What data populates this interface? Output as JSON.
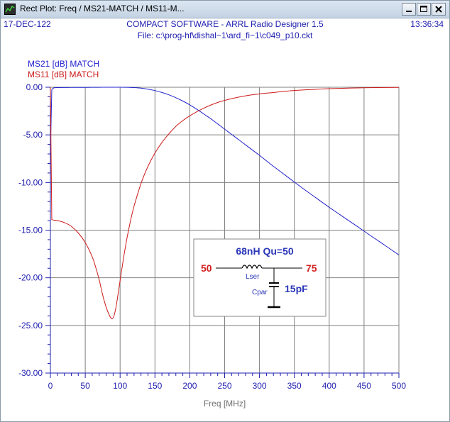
{
  "window": {
    "title": "Rect Plot: Freq / MS21-MATCH / MS11-M...",
    "icon": "plot-app-icon",
    "controls": [
      "minimize-icon",
      "maximize-icon",
      "close-icon"
    ]
  },
  "header": {
    "date": "17-DEC-122",
    "title": "COMPACT SOFTWARE - ARRL Radio Designer 1.5",
    "time": "13:36:34",
    "file": "File: c:\\prog-hf\\dishal~1\\ard_fi~1\\c049_p10.ckt"
  },
  "colors": {
    "ms21": "#2222cc",
    "ms11": "#cc1a1a",
    "grid": "#808080",
    "axis": "#1f1fb0",
    "accent_red": "#d42020",
    "accent_blue": "#2a36b8"
  },
  "chart_data": {
    "type": "line",
    "xlabel": "Freq [MHz]",
    "ylabel": "",
    "xlim": [
      0,
      500
    ],
    "ylim": [
      -30,
      0
    ],
    "x_ticks": [
      "0",
      "50",
      "100",
      "150",
      "200",
      "250",
      "300",
      "350",
      "400",
      "450",
      "500"
    ],
    "y_ticks": [
      "0.00",
      "-5.00",
      "-10.00",
      "-15.00",
      "-20.00",
      "-25.00",
      "-30.00"
    ],
    "grid": true,
    "legend_placement": "top-left",
    "series": [
      {
        "name": "MS21 [dB] MATCH",
        "color": "#2222cc",
        "x": [
          0,
          2,
          5,
          10,
          20,
          30,
          40,
          50,
          60,
          70,
          80,
          90,
          100,
          110,
          120,
          130,
          140,
          150,
          160,
          170,
          180,
          190,
          200,
          210,
          220,
          230,
          240,
          250,
          260,
          270,
          280,
          290,
          300,
          320,
          340,
          360,
          380,
          400,
          420,
          440,
          460,
          480,
          500
        ],
        "y": [
          -7.0,
          -0.25,
          -0.07,
          -0.04,
          -0.03,
          -0.02,
          -0.02,
          -0.02,
          -0.01,
          -0.01,
          0.0,
          0.0,
          0.0,
          -0.01,
          -0.04,
          -0.1,
          -0.2,
          -0.35,
          -0.55,
          -0.8,
          -1.1,
          -1.45,
          -1.85,
          -2.3,
          -2.8,
          -3.3,
          -3.85,
          -4.4,
          -4.95,
          -5.5,
          -6.05,
          -6.6,
          -7.15,
          -8.3,
          -9.4,
          -10.5,
          -11.55,
          -12.6,
          -13.6,
          -14.6,
          -15.6,
          -16.6,
          -17.6
        ]
      },
      {
        "name": "MS11 [dB] MATCH",
        "color": "#cc1a1a",
        "x": [
          0,
          2,
          5,
          10,
          20,
          30,
          40,
          50,
          60,
          65,
          70,
          75,
          80,
          85,
          88,
          90,
          92,
          95,
          100,
          105,
          110,
          115,
          120,
          130,
          140,
          150,
          160,
          170,
          180,
          190,
          200,
          220,
          240,
          260,
          280,
          300,
          320,
          340,
          360,
          380,
          400,
          450,
          500
        ],
        "y": [
          0.0,
          -13.9,
          -13.95,
          -14.0,
          -14.2,
          -14.6,
          -15.3,
          -16.3,
          -17.8,
          -18.9,
          -20.2,
          -21.8,
          -23.1,
          -24.0,
          -24.3,
          -24.2,
          -23.8,
          -22.7,
          -20.3,
          -17.9,
          -15.8,
          -14.0,
          -12.5,
          -10.1,
          -8.3,
          -6.9,
          -5.8,
          -4.9,
          -4.1,
          -3.5,
          -3.0,
          -2.2,
          -1.6,
          -1.2,
          -0.9,
          -0.7,
          -0.55,
          -0.4,
          -0.3,
          -0.22,
          -0.15,
          -0.06,
          -0.02
        ]
      }
    ],
    "annotation": {
      "title": "68nH Qu=50",
      "source_value": "50",
      "load_value": "75",
      "inductor_label": "Lser",
      "capacitor_label": "Cpar",
      "capacitor_value": "15pF"
    }
  }
}
